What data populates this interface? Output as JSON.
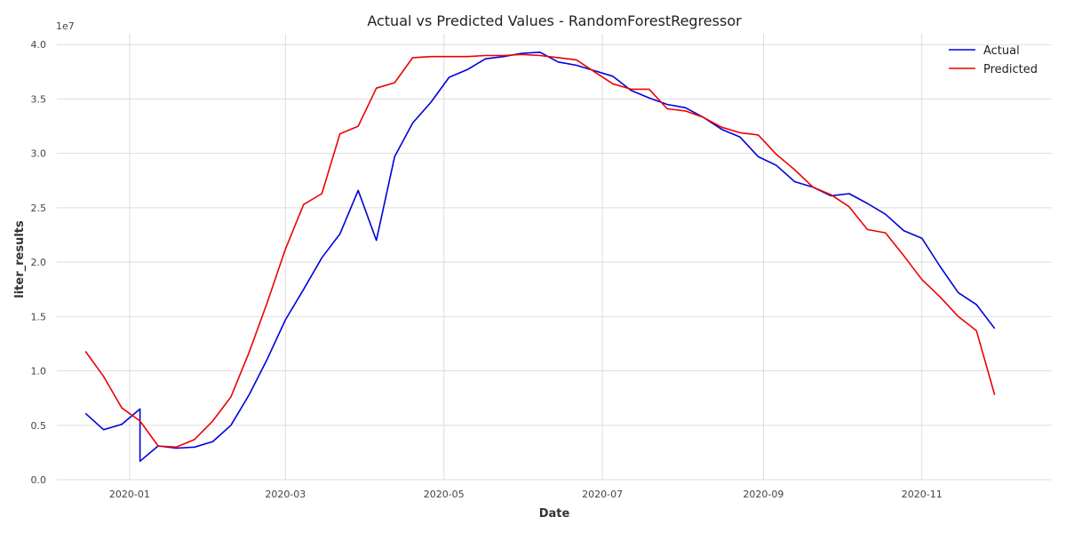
{
  "chart_data": {
    "type": "line",
    "title": "Actual vs Predicted Values - RandomForestRegressor",
    "xlabel": "Date",
    "ylabel": "liter_results",
    "y_offset_label": "1e7",
    "xlim": [
      "2019-12-04",
      "2020-12-21"
    ],
    "ylim": [
      0.0,
      4.1
    ],
    "y_ticks": [
      0.0,
      0.5,
      1.0,
      1.5,
      2.0,
      2.5,
      3.0,
      3.5,
      4.0
    ],
    "x_ticks": [
      "2020-01",
      "2020-03",
      "2020-05",
      "2020-07",
      "2020-09",
      "2020-11"
    ],
    "legend_position": "top-right",
    "grid": true,
    "series": [
      {
        "name": "Actual",
        "color": "#0000dd",
        "x": [
          "2019-12-15",
          "2019-12-22",
          "2019-12-29",
          "2020-01-05",
          "2020-01-05",
          "2020-01-12",
          "2020-01-19",
          "2020-01-26",
          "2020-02-02",
          "2020-02-09",
          "2020-02-16",
          "2020-02-23",
          "2020-03-01",
          "2020-03-08",
          "2020-03-15",
          "2020-03-22",
          "2020-03-29",
          "2020-04-05",
          "2020-04-12",
          "2020-04-19",
          "2020-04-26",
          "2020-05-03",
          "2020-05-10",
          "2020-05-17",
          "2020-05-24",
          "2020-05-31",
          "2020-06-07",
          "2020-06-14",
          "2020-06-21",
          "2020-06-28",
          "2020-07-05",
          "2020-07-12",
          "2020-07-19",
          "2020-07-26",
          "2020-08-02",
          "2020-08-09",
          "2020-08-16",
          "2020-08-23",
          "2020-08-30",
          "2020-09-06",
          "2020-09-13",
          "2020-09-20",
          "2020-09-27",
          "2020-10-04",
          "2020-10-11",
          "2020-10-18",
          "2020-10-25",
          "2020-11-01",
          "2020-11-08",
          "2020-11-15",
          "2020-11-22",
          "2020-11-29"
        ],
        "values": [
          0.61,
          0.46,
          0.51,
          0.65,
          0.17,
          0.31,
          0.29,
          0.3,
          0.35,
          0.5,
          0.78,
          1.11,
          1.47,
          1.75,
          2.04,
          2.26,
          2.66,
          2.2,
          2.97,
          3.28,
          3.47,
          3.7,
          3.77,
          3.87,
          3.89,
          3.92,
          3.93,
          3.84,
          3.81,
          3.76,
          3.71,
          3.58,
          3.51,
          3.45,
          3.42,
          3.33,
          3.22,
          3.15,
          2.97,
          2.89,
          2.74,
          2.69,
          2.61,
          2.63,
          2.54,
          2.44,
          2.29,
          2.22,
          1.96,
          1.72,
          1.61,
          1.39
        ]
      },
      {
        "name": "Predicted",
        "color": "#ee0000",
        "x": [
          "2019-12-15",
          "2019-12-22",
          "2019-12-29",
          "2020-01-05",
          "2020-01-12",
          "2020-01-19",
          "2020-01-26",
          "2020-02-02",
          "2020-02-09",
          "2020-02-16",
          "2020-02-23",
          "2020-03-01",
          "2020-03-08",
          "2020-03-15",
          "2020-03-22",
          "2020-03-29",
          "2020-04-05",
          "2020-04-12",
          "2020-04-19",
          "2020-04-26",
          "2020-05-03",
          "2020-05-10",
          "2020-05-17",
          "2020-05-24",
          "2020-05-31",
          "2020-06-07",
          "2020-06-14",
          "2020-06-21",
          "2020-06-28",
          "2020-07-05",
          "2020-07-12",
          "2020-07-19",
          "2020-07-26",
          "2020-08-02",
          "2020-08-09",
          "2020-08-16",
          "2020-08-23",
          "2020-08-30",
          "2020-09-06",
          "2020-09-13",
          "2020-09-20",
          "2020-09-27",
          "2020-10-04",
          "2020-10-11",
          "2020-10-18",
          "2020-10-25",
          "2020-11-01",
          "2020-11-08",
          "2020-11-15",
          "2020-11-22",
          "2020-11-29"
        ],
        "values": [
          1.18,
          0.95,
          0.66,
          0.54,
          0.31,
          0.3,
          0.37,
          0.54,
          0.76,
          1.17,
          1.63,
          2.12,
          2.53,
          2.63,
          3.18,
          3.25,
          3.6,
          3.65,
          3.88,
          3.89,
          3.89,
          3.89,
          3.9,
          3.9,
          3.91,
          3.9,
          3.88,
          3.86,
          3.75,
          3.64,
          3.59,
          3.59,
          3.41,
          3.39,
          3.33,
          3.24,
          3.19,
          3.17,
          2.99,
          2.85,
          2.69,
          2.62,
          2.51,
          2.3,
          2.27,
          2.06,
          1.84,
          1.68,
          1.5,
          1.37,
          0.78
        ]
      }
    ]
  }
}
